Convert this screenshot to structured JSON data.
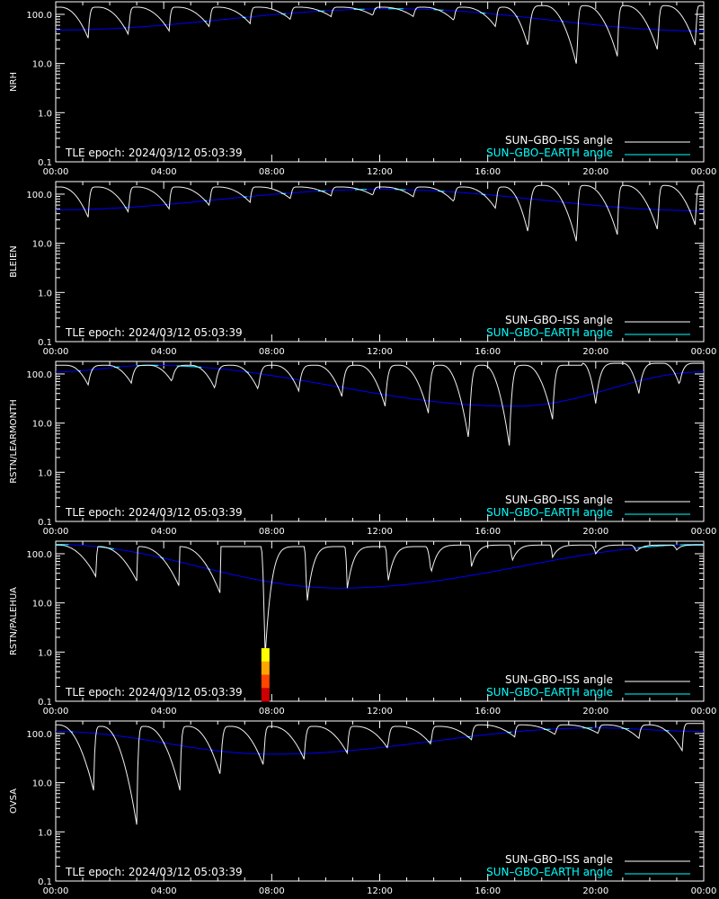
{
  "chart_data": {
    "type": "line",
    "y_scale": "log",
    "ylim": [
      0.1,
      180
    ],
    "xlim": [
      "00:00",
      "24:00"
    ],
    "x_tick_labels": [
      "00:00",
      "04:00",
      "08:00",
      "12:00",
      "16:00",
      "20:00",
      "00:00"
    ],
    "y_tick_labels": [
      "0.1",
      "1.0",
      "10.0",
      "100.0"
    ],
    "legend": {
      "placement": "bottom-right"
    },
    "epoch_label": "TLE epoch: 2024/03/12 05:03:39",
    "colors": {
      "iss": "#ffffff",
      "earth_line": "#0000ff",
      "earth_highlight": "#00ffff",
      "axis": "#ffffff",
      "background": "#000000"
    },
    "series_names": [
      "SUN–GBO–ISS angle",
      "SUN–GBO–EARTH angle"
    ],
    "panels": [
      {
        "ylabel": "NRH",
        "earth": {
          "hours": [
            0,
            12.5,
            24
          ],
          "values": [
            48,
            130,
            46
          ]
        },
        "iss": {
          "peaks": [
            0.15,
            1.55,
            3.0,
            4.5,
            6.0,
            7.5,
            9.0,
            10.55,
            12.1,
            13.6,
            15.1,
            16.6,
            18.1,
            19.6,
            21.1,
            22.6,
            23.9
          ],
          "peak_values": [
            140,
            140,
            140,
            140,
            140,
            140,
            140,
            140,
            140,
            140,
            140,
            140,
            150,
            150,
            150,
            150,
            150
          ],
          "minima": [
            1.2,
            2.7,
            4.2,
            5.7,
            7.2,
            8.7,
            10.2,
            11.75,
            13.25,
            14.75,
            16.3,
            17.5,
            19.3,
            20.8,
            22.3,
            23.7
          ],
          "min_values": [
            33,
            38,
            46,
            55,
            65,
            78,
            90,
            95,
            90,
            75,
            55,
            22,
            9,
            14,
            18,
            22
          ]
        }
      },
      {
        "ylabel": "BLEIEN",
        "earth": {
          "hours": [
            0,
            12,
            24
          ],
          "values": [
            48,
            125,
            46
          ]
        },
        "iss": {
          "peaks": [
            0.15,
            1.55,
            3.0,
            4.5,
            6.0,
            7.5,
            9.0,
            10.55,
            12.1,
            13.6,
            15.1,
            16.6,
            18.1,
            19.6,
            21.1,
            22.6,
            23.9
          ],
          "peak_values": [
            140,
            140,
            140,
            140,
            140,
            140,
            140,
            140,
            140,
            140,
            140,
            140,
            150,
            150,
            150,
            150,
            150
          ],
          "minima": [
            1.2,
            2.7,
            4.2,
            5.7,
            7.2,
            8.7,
            10.2,
            11.75,
            13.25,
            14.75,
            16.3,
            17.5,
            19.3,
            20.8,
            22.3,
            23.7
          ],
          "min_values": [
            34,
            42,
            50,
            58,
            68,
            80,
            92,
            95,
            88,
            70,
            50,
            16,
            10,
            15,
            18,
            22
          ]
        }
      },
      {
        "ylabel": "RSTN/LEARMONTH",
        "earth": {
          "hours": [
            0,
            3.5,
            17,
            24
          ],
          "values": [
            110,
            150,
            22,
            110
          ]
        },
        "iss": {
          "peaks": [
            0.4,
            1.9,
            3.45,
            5.0,
            6.55,
            8.1,
            9.65,
            11.2,
            12.75,
            14.3,
            15.85,
            17.4,
            18.9,
            19.5,
            21.0,
            22.5,
            23.9
          ],
          "peak_values": [
            150,
            150,
            150,
            150,
            150,
            150,
            150,
            150,
            150,
            150,
            150,
            150,
            150,
            165,
            165,
            165,
            165
          ],
          "minima": [
            1.2,
            2.8,
            4.3,
            5.9,
            7.5,
            9.0,
            10.6,
            12.2,
            13.8,
            15.3,
            16.8,
            18.4,
            20.0,
            21.6,
            23.1
          ],
          "min_values": [
            60,
            65,
            70,
            50,
            48,
            45,
            35,
            22,
            16,
            4.5,
            3.5,
            12,
            25,
            40,
            60
          ]
        }
      },
      {
        "ylabel": "RSTN/PALEHUA",
        "earth": {
          "hours": [
            0,
            10.5,
            24
          ],
          "values": [
            155,
            20,
            155
          ]
        },
        "iss": {
          "peaks": [
            0.1,
            1.6,
            3.1,
            4.6,
            6.1,
            7.6,
            9.2,
            10.7,
            12.2,
            13.7,
            15.3,
            16.8,
            18.3,
            19.8,
            21.3,
            22.8,
            23.95
          ],
          "peak_values": [
            150,
            140,
            140,
            140,
            140,
            140,
            140,
            140,
            140,
            140,
            150,
            150,
            150,
            150,
            150,
            150,
            150
          ],
          "minima": [
            1.5,
            3.0,
            4.6,
            6.1,
            7.75,
            9.3,
            10.8,
            12.3,
            13.9,
            15.4,
            16.9,
            18.4,
            20.0,
            21.5,
            23.0
          ],
          "min_values": [
            33,
            28,
            20,
            15,
            0.7,
            9,
            20,
            25,
            40,
            55,
            70,
            85,
            100,
            110,
            120
          ]
        },
        "event_bar": {
          "x": "07:45",
          "y_range": [
            0.1,
            1.2
          ],
          "colors": [
            "#ffff00",
            "#ffa500",
            "#ff4500",
            "#cc0000"
          ]
        }
      },
      {
        "ylabel": "OVSA",
        "earth": {
          "hours": [
            0,
            8,
            20,
            24
          ],
          "values": [
            110,
            38,
            130,
            110
          ]
        },
        "iss": {
          "peaks": [
            0.1,
            1.7,
            3.3,
            4.9,
            6.5,
            8.0,
            9.6,
            11.1,
            12.7,
            14.2,
            15.8,
            17.3,
            18.9,
            20.4,
            22.0,
            23.5
          ],
          "peak_values": [
            150,
            140,
            140,
            140,
            140,
            140,
            140,
            140,
            140,
            140,
            150,
            150,
            150,
            150,
            150,
            160
          ],
          "minima": [
            1.4,
            3.0,
            4.6,
            6.1,
            7.7,
            9.2,
            10.8,
            12.3,
            13.9,
            15.4,
            17.0,
            18.5,
            20.1,
            21.6,
            23.2
          ],
          "min_values": [
            7,
            1.4,
            7,
            14,
            22,
            30,
            40,
            50,
            60,
            75,
            85,
            95,
            100,
            80,
            45
          ]
        }
      }
    ]
  }
}
